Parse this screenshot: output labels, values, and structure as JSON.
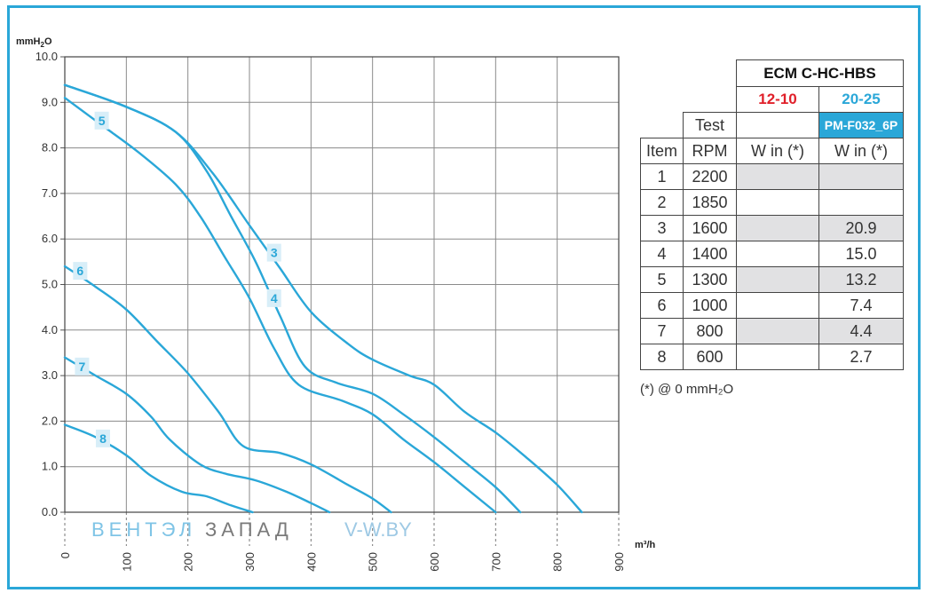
{
  "chart_data": {
    "type": "line",
    "ylabel": "mmH2O",
    "xlabel": "m³/h",
    "ylim": [
      0,
      10
    ],
    "xlim": [
      0,
      900
    ],
    "yticks": [
      "0.0",
      "1.0",
      "2.0",
      "3.0",
      "4.0",
      "5.0",
      "6.0",
      "7.0",
      "8.0",
      "9.0",
      "10.0"
    ],
    "xticks": [
      "0",
      "100",
      "200",
      "300",
      "400",
      "500",
      "600",
      "700",
      "800",
      "900"
    ],
    "grid": true,
    "color": "#2aa7d8",
    "series": [
      {
        "name": "3",
        "label_at": [
          340,
          5.7
        ],
        "points": [
          [
            0,
            9.38
          ],
          [
            100,
            8.9
          ],
          [
            180,
            8.35
          ],
          [
            240,
            7.45
          ],
          [
            300,
            6.3
          ],
          [
            350,
            5.35
          ],
          [
            400,
            4.4
          ],
          [
            460,
            3.7
          ],
          [
            500,
            3.35
          ],
          [
            560,
            3.0
          ],
          [
            600,
            2.8
          ],
          [
            650,
            2.2
          ],
          [
            700,
            1.75
          ],
          [
            750,
            1.2
          ],
          [
            800,
            0.6
          ],
          [
            840,
            0.0
          ]
        ]
      },
      {
        "name": "4",
        "label_at": [
          340,
          4.7
        ],
        "points": [
          [
            0,
            9.38
          ],
          [
            100,
            8.9
          ],
          [
            180,
            8.35
          ],
          [
            230,
            7.5
          ],
          [
            270,
            6.5
          ],
          [
            310,
            5.5
          ],
          [
            350,
            4.3
          ],
          [
            390,
            3.2
          ],
          [
            440,
            2.85
          ],
          [
            500,
            2.6
          ],
          [
            550,
            2.15
          ],
          [
            600,
            1.65
          ],
          [
            650,
            1.1
          ],
          [
            700,
            0.55
          ],
          [
            740,
            0.0
          ]
        ]
      },
      {
        "name": "5",
        "label_at": [
          60,
          8.6
        ],
        "points": [
          [
            0,
            9.1
          ],
          [
            60,
            8.5
          ],
          [
            120,
            7.9
          ],
          [
            180,
            7.2
          ],
          [
            220,
            6.5
          ],
          [
            260,
            5.6
          ],
          [
            300,
            4.7
          ],
          [
            340,
            3.6
          ],
          [
            380,
            2.8
          ],
          [
            450,
            2.45
          ],
          [
            500,
            2.15
          ],
          [
            550,
            1.6
          ],
          [
            600,
            1.1
          ],
          [
            650,
            0.55
          ],
          [
            700,
            0.0
          ]
        ]
      },
      {
        "name": "6",
        "label_at": [
          25,
          5.3
        ],
        "points": [
          [
            0,
            5.4
          ],
          [
            50,
            4.95
          ],
          [
            100,
            4.45
          ],
          [
            150,
            3.75
          ],
          [
            200,
            3.05
          ],
          [
            250,
            2.2
          ],
          [
            290,
            1.45
          ],
          [
            350,
            1.3
          ],
          [
            400,
            1.05
          ],
          [
            460,
            0.6
          ],
          [
            500,
            0.3
          ],
          [
            530,
            0.0
          ]
        ]
      },
      {
        "name": "7",
        "label_at": [
          28,
          3.2
        ],
        "points": [
          [
            0,
            3.4
          ],
          [
            50,
            3.0
          ],
          [
            100,
            2.6
          ],
          [
            140,
            2.1
          ],
          [
            170,
            1.6
          ],
          [
            220,
            1.05
          ],
          [
            260,
            0.85
          ],
          [
            310,
            0.7
          ],
          [
            360,
            0.45
          ],
          [
            400,
            0.2
          ],
          [
            430,
            0.0
          ]
        ]
      },
      {
        "name": "8",
        "label_at": [
          62,
          1.62
        ],
        "points": [
          [
            0,
            1.92
          ],
          [
            50,
            1.65
          ],
          [
            100,
            1.25
          ],
          [
            140,
            0.8
          ],
          [
            190,
            0.45
          ],
          [
            230,
            0.35
          ],
          [
            270,
            0.15
          ],
          [
            305,
            0.0
          ]
        ]
      }
    ]
  },
  "watermark": {
    "part1": "ВЕНТЭЛ",
    "part2": "ЗАПАД",
    "site": "V-W.BY"
  },
  "table": {
    "model": "ECM C-HC-HBS",
    "ranges": [
      "12-10",
      "20-25"
    ],
    "test_label": "Test",
    "code": "PM-F032_6P",
    "headers": [
      "Item",
      "RPM",
      "W in (*)",
      "W in (*)"
    ],
    "rows": [
      [
        "1",
        "2200",
        "",
        ""
      ],
      [
        "2",
        "1850",
        "",
        ""
      ],
      [
        "3",
        "1600",
        "",
        "20.9"
      ],
      [
        "4",
        "1400",
        "",
        "15.0"
      ],
      [
        "5",
        "1300",
        "",
        "13.2"
      ],
      [
        "6",
        "1000",
        "",
        "7.4"
      ],
      [
        "7",
        "800",
        "",
        "4.4"
      ],
      [
        "8",
        "600",
        "",
        "2.7"
      ]
    ],
    "footnote": "(*) @ 0 mmH₂O"
  }
}
